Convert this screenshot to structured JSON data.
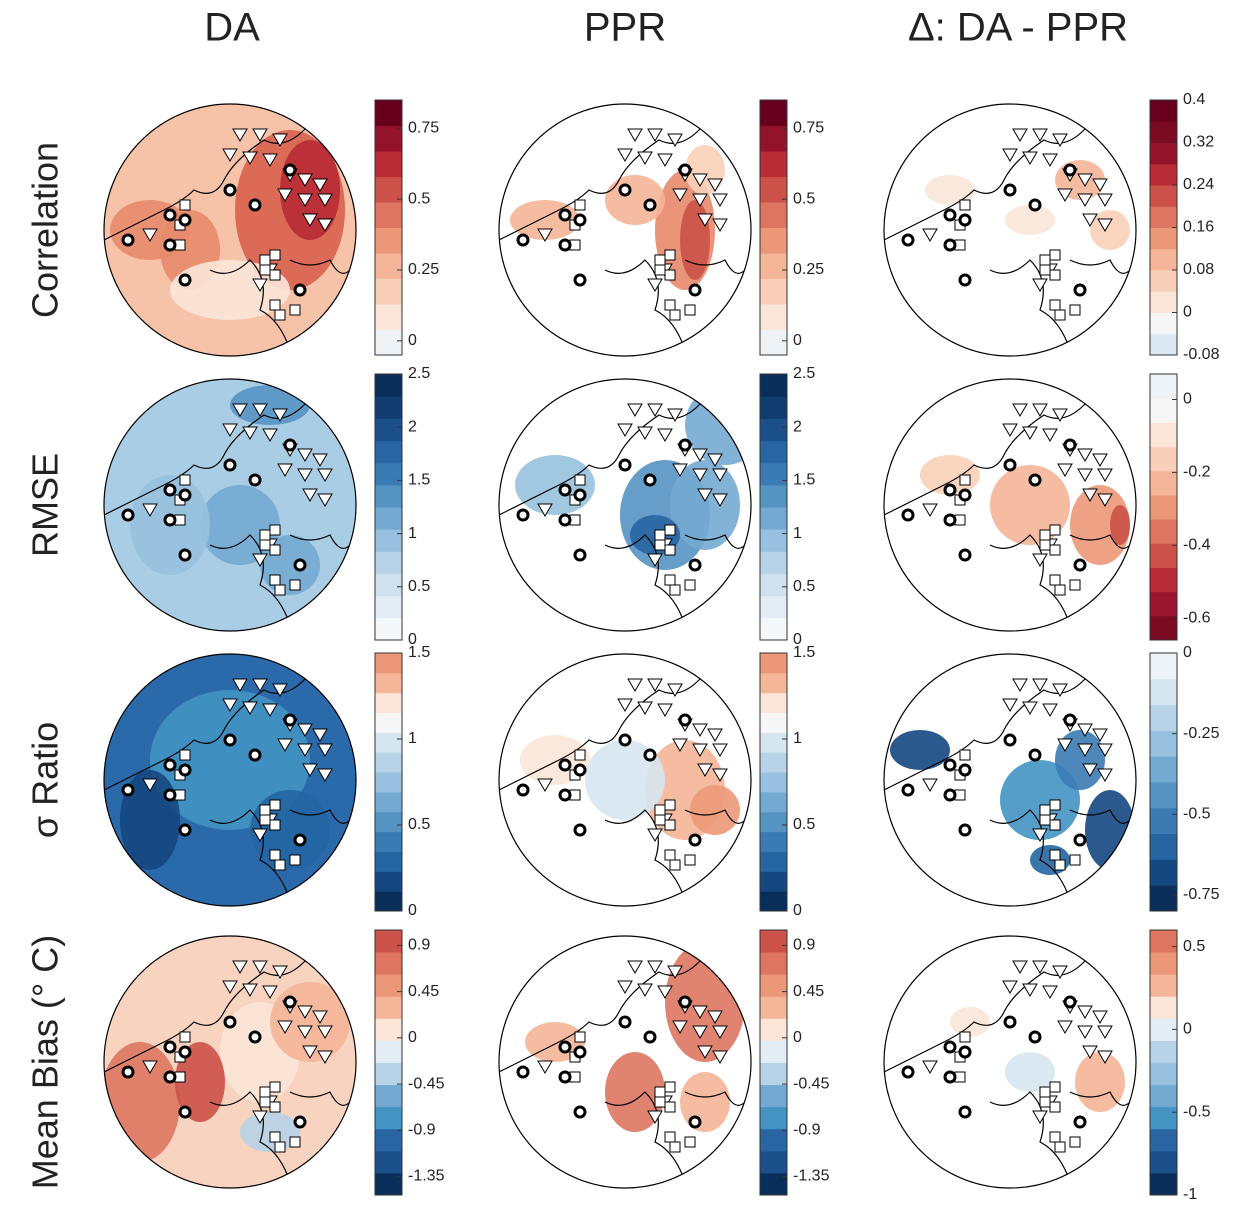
{
  "figure": {
    "columns": [
      "DA",
      "PPR",
      "Δ: DA - PPR"
    ],
    "rows": [
      "Correlation",
      "RMSE",
      "σ Ratio",
      "Mean Bias (° C)"
    ],
    "colorbars": [
      [
        {
          "lim": [
            -0.05,
            0.85
          ],
          "ticks": [
            0,
            0.25,
            0.5,
            0.75
          ],
          "colors": [
            "#eef3f7",
            "#fbe5d8",
            "#f8cfb8",
            "#f4b598",
            "#ec9878",
            "#dd7560",
            "#cc5148",
            "#b82a34",
            "#92132a",
            "#67001f"
          ]
        },
        {
          "lim": [
            -0.05,
            0.85
          ],
          "ticks": [
            0,
            0.25,
            0.5,
            0.75
          ],
          "colors": [
            "#eef3f7",
            "#fbe5d8",
            "#f8cfb8",
            "#f4b598",
            "#ec9878",
            "#dd7560",
            "#cc5148",
            "#b82a34",
            "#92132a",
            "#67001f"
          ]
        },
        {
          "lim": [
            -0.08,
            0.4
          ],
          "ticks": [
            -0.08,
            0,
            0.08,
            0.16,
            0.24,
            0.32,
            0.4
          ],
          "colors": [
            "#dce9f2",
            "#f7f7f7",
            "#fbe5d8",
            "#f8cfb8",
            "#f4b598",
            "#ec9878",
            "#dd7560",
            "#cc5148",
            "#b82a34",
            "#92132a",
            "#7a0b23",
            "#67001f"
          ]
        }
      ],
      [
        {
          "lim": [
            0,
            2.5
          ],
          "ticks": [
            0,
            0.5,
            1,
            1.5,
            2,
            2.5
          ],
          "colors": [
            "#f4f8fb",
            "#e2edf5",
            "#cfe1ef",
            "#b6d3e8",
            "#97c1de",
            "#74aad1",
            "#5593c3",
            "#3b7bb4",
            "#2865a2",
            "#1b4f8a",
            "#103c70",
            "#0a2e5a"
          ]
        },
        {
          "lim": [
            0,
            2.5
          ],
          "ticks": [
            0,
            0.5,
            1,
            1.5,
            2,
            2.5
          ],
          "colors": [
            "#f4f8fb",
            "#e2edf5",
            "#cfe1ef",
            "#b6d3e8",
            "#97c1de",
            "#74aad1",
            "#5593c3",
            "#3b7bb4",
            "#2865a2",
            "#1b4f8a",
            "#103c70",
            "#0a2e5a"
          ]
        },
        {
          "lim": [
            -0.66,
            0.07
          ],
          "ticks": [
            -0.6,
            -0.4,
            -0.2,
            0
          ],
          "colors": [
            "#7a0b23",
            "#9c1530",
            "#b82a34",
            "#cc5148",
            "#dd7560",
            "#ec9878",
            "#f4b598",
            "#f8cfb8",
            "#fbe5d8",
            "#f7f7f7",
            "#eef3f7"
          ]
        }
      ],
      [
        {
          "lim": [
            0,
            1.5
          ],
          "ticks": [
            0,
            0.5,
            1,
            1.5
          ],
          "colors": [
            "#0a2e5a",
            "#154781",
            "#2465a2",
            "#3b7bb4",
            "#5593c3",
            "#74aad1",
            "#97c1de",
            "#b6d3e8",
            "#d6e6f1",
            "#f7f7f7",
            "#fbe5d8",
            "#f4b598",
            "#ec9878"
          ]
        },
        {
          "lim": [
            0,
            1.5
          ],
          "ticks": [
            0,
            0.5,
            1,
            1.5
          ],
          "colors": [
            "#0a2e5a",
            "#154781",
            "#2465a2",
            "#3b7bb4",
            "#5593c3",
            "#74aad1",
            "#97c1de",
            "#b6d3e8",
            "#d6e6f1",
            "#f7f7f7",
            "#fbe5d8",
            "#f4b598",
            "#ec9878"
          ]
        },
        {
          "lim": [
            -0.8,
            0
          ],
          "ticks": [
            -0.75,
            -0.5,
            -0.25,
            0
          ],
          "colors": [
            "#0a2e5a",
            "#154781",
            "#2465a2",
            "#3b7bb4",
            "#5593c3",
            "#74aad1",
            "#97c1de",
            "#b6d3e8",
            "#d6e6f1",
            "#eef3f7"
          ]
        }
      ],
      [
        {
          "lim": [
            -1.53,
            1.05
          ],
          "ticks": [
            -1.35,
            -0.9,
            -0.45,
            0,
            0.45,
            0.9
          ],
          "colors": [
            "#0a2e5a",
            "#1b4f8a",
            "#2865a2",
            "#4393c3",
            "#74aad1",
            "#b6d3e8",
            "#e2edf5",
            "#fbe5d8",
            "#f4b598",
            "#ec9878",
            "#dd7560",
            "#cc5148"
          ]
        },
        {
          "lim": [
            -1.53,
            1.05
          ],
          "ticks": [
            -1.35,
            -0.9,
            -0.45,
            0,
            0.45,
            0.9
          ],
          "colors": [
            "#0a2e5a",
            "#1b4f8a",
            "#2865a2",
            "#4393c3",
            "#74aad1",
            "#b6d3e8",
            "#e2edf5",
            "#fbe5d8",
            "#f4b598",
            "#ec9878",
            "#dd7560",
            "#cc5148"
          ]
        },
        {
          "lim": [
            -1,
            0.6
          ],
          "ticks": [
            -1,
            -0.5,
            0,
            0.5
          ],
          "colors": [
            "#0a2e5a",
            "#1b4f8a",
            "#2865a2",
            "#4393c3",
            "#74aad1",
            "#97c1de",
            "#b6d3e8",
            "#e2edf5",
            "#fbe5d8",
            "#f4b598",
            "#ec9878",
            "#dd7560"
          ]
        }
      ]
    ]
  }
}
